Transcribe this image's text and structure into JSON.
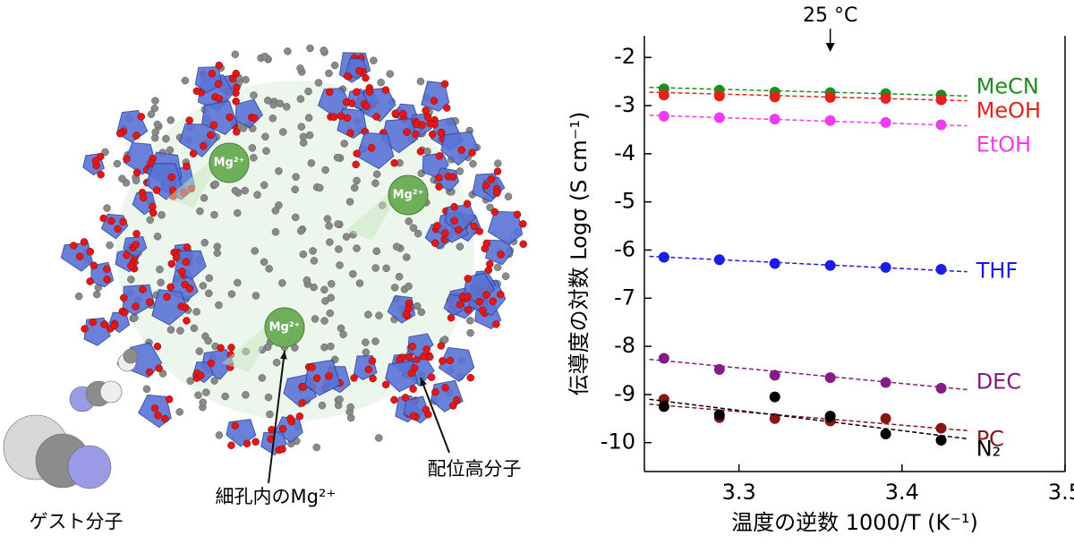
{
  "chart_data": {
    "type": "scatter",
    "x_label": "温度の逆数 1000/T (K⁻¹)",
    "y_label": "伝導度の対数 Logσ (S cm⁻¹)",
    "annotation": "25 °C",
    "annotation_x": 3.356,
    "x": [
      3.254,
      3.288,
      3.322,
      3.356,
      3.39,
      3.424
    ],
    "fit_x": [
      3.245,
      3.44
    ],
    "xlim": [
      3.242,
      3.5
    ],
    "xticks": [
      3.3,
      3.4,
      3.5
    ],
    "ylim": [
      -10.6,
      -1.55
    ],
    "yticks": [
      -2,
      -3,
      -4,
      -5,
      -6,
      -7,
      -8,
      -9,
      -10
    ],
    "series": [
      {
        "name": "MeCN",
        "color": "#1e8c1e",
        "values": [
          -2.65,
          -2.68,
          -2.72,
          -2.73,
          -2.75,
          -2.78
        ],
        "fit": [
          -2.62,
          -2.8
        ]
      },
      {
        "name": "MeOH",
        "color": "#e3231b",
        "values": [
          -2.78,
          -2.8,
          -2.82,
          -2.83,
          -2.85,
          -2.88
        ],
        "fit": [
          -2.72,
          -2.9
        ]
      },
      {
        "name": "EtOH",
        "color": "#f03cf0",
        "values": [
          -3.22,
          -3.25,
          -3.28,
          -3.31,
          -3.35,
          -3.4
        ],
        "fit": [
          -3.2,
          -3.42
        ]
      },
      {
        "name": "THF",
        "color": "#1c1ce6",
        "values": [
          -6.15,
          -6.2,
          -6.28,
          -6.32,
          -6.36,
          -6.4
        ],
        "fit": [
          -6.13,
          -6.45
        ]
      },
      {
        "name": "DEC",
        "color": "#861a86",
        "values": [
          -8.25,
          -8.48,
          -8.6,
          -8.65,
          -8.75,
          -8.87
        ],
        "fit": [
          -8.27,
          -8.9
        ]
      },
      {
        "name": "PC",
        "color": "#8b1414",
        "values": [
          -9.1,
          -9.48,
          -9.5,
          -9.55,
          -9.5,
          -9.7
        ],
        "fit": [
          -9.2,
          -9.75
        ]
      },
      {
        "name": "N₂",
        "color": "#000000",
        "values": [
          -9.25,
          -9.42,
          -9.05,
          -9.45,
          -9.82,
          -9.95
        ],
        "fit": [
          -9.1,
          -9.92
        ]
      }
    ]
  },
  "illustration": {
    "ions": [
      "Mg²⁺",
      "Mg²⁺",
      "Mg²⁺"
    ],
    "pore_label": "細孔内のMg²⁺",
    "polymer_label": "配位高分子",
    "guest_label": "ゲスト分子"
  }
}
